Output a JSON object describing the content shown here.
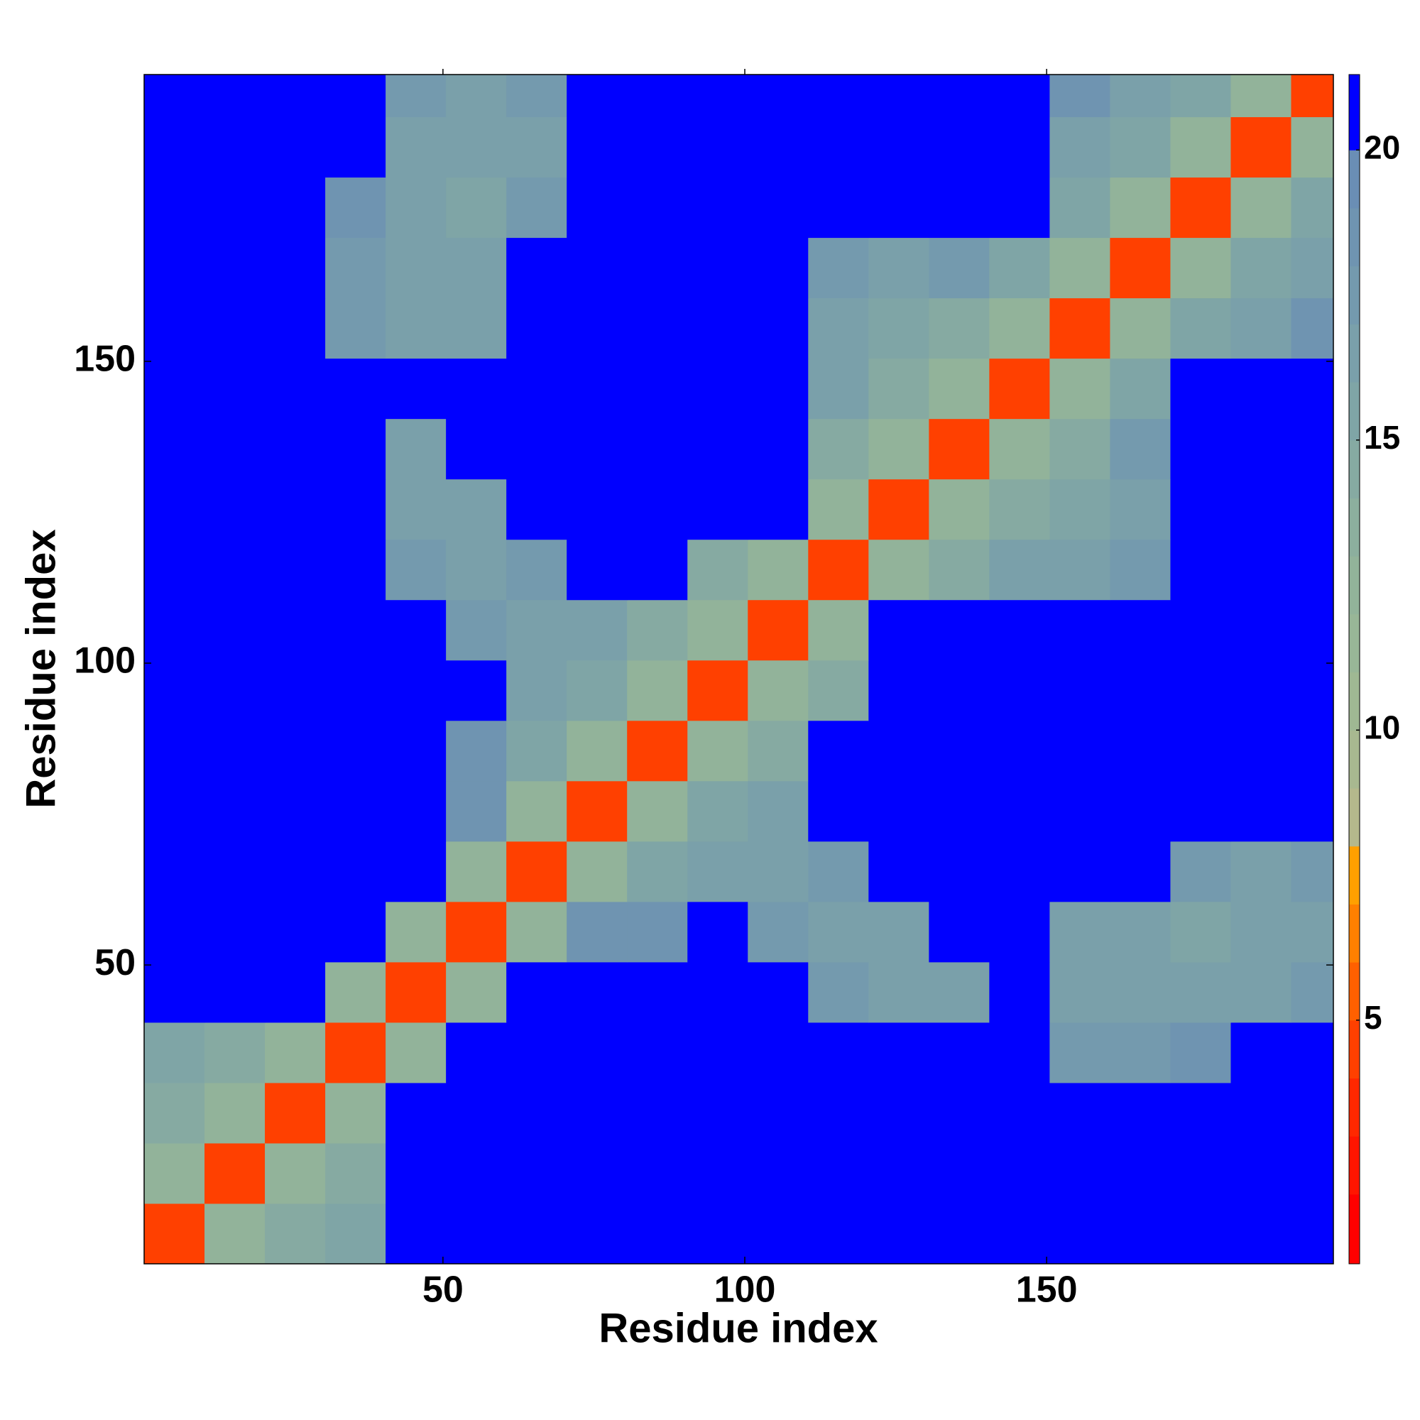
{
  "chart_data": {
    "type": "heatmap",
    "x_label": "Residue index",
    "y_label": "Residue index",
    "xlim": [
      0.5,
      197.5
    ],
    "ylim": [
      0.5,
      197.5
    ],
    "xticks": [
      50,
      100,
      150
    ],
    "yticks": [
      50,
      100,
      150
    ],
    "xbins": [
      0.5,
      10.5,
      20.5,
      30.5,
      40.5,
      50.5,
      60.5,
      70.5,
      80.5,
      90.5,
      100.5,
      110.5,
      120.5,
      130.5,
      140.5,
      150.5,
      160.5,
      170.5,
      180.5,
      190.5,
      197.5
    ],
    "ybins": [
      0.5,
      10.5,
      20.5,
      30.5,
      40.5,
      50.5,
      60.5,
      70.5,
      80.5,
      90.5,
      100.5,
      110.5,
      120.5,
      130.5,
      140.5,
      150.5,
      160.5,
      170.5,
      180.5,
      190.5,
      197.5
    ],
    "values": [
      [
        4,
        12,
        14,
        15,
        21,
        21,
        21,
        21,
        21,
        21,
        21,
        21,
        21,
        21,
        21,
        21,
        21,
        21,
        21,
        21
      ],
      [
        12,
        4,
        12,
        14,
        21,
        21,
        21,
        21,
        21,
        21,
        21,
        21,
        21,
        21,
        21,
        21,
        21,
        21,
        21,
        21
      ],
      [
        14,
        12,
        4,
        12,
        21,
        21,
        21,
        21,
        21,
        21,
        21,
        21,
        21,
        21,
        21,
        21,
        21,
        21,
        21,
        21
      ],
      [
        15,
        14,
        12,
        4,
        12,
        21,
        21,
        21,
        21,
        21,
        21,
        21,
        21,
        21,
        21,
        17,
        17,
        18,
        21,
        21
      ],
      [
        21,
        21,
        21,
        12,
        4,
        12,
        21,
        21,
        21,
        21,
        21,
        17,
        16,
        16,
        21,
        16,
        16,
        16,
        16,
        17
      ],
      [
        21,
        21,
        21,
        21,
        12,
        4,
        12,
        18,
        18,
        21,
        17,
        16,
        16,
        21,
        21,
        16,
        16,
        15,
        16,
        16
      ],
      [
        21,
        21,
        21,
        21,
        21,
        12,
        4,
        12,
        15,
        16,
        16,
        17,
        21,
        21,
        21,
        21,
        21,
        17,
        16,
        17
      ],
      [
        21,
        21,
        21,
        21,
        21,
        18,
        12,
        4,
        12,
        15,
        16,
        21,
        21,
        21,
        21,
        21,
        21,
        21,
        21,
        21
      ],
      [
        21,
        21,
        21,
        21,
        21,
        18,
        15,
        12,
        4,
        12,
        14,
        21,
        21,
        21,
        21,
        21,
        21,
        21,
        21,
        21
      ],
      [
        21,
        21,
        21,
        21,
        21,
        21,
        16,
        15,
        12,
        4,
        12,
        14,
        21,
        21,
        21,
        21,
        21,
        21,
        21,
        21
      ],
      [
        21,
        21,
        21,
        21,
        21,
        17,
        16,
        16,
        14,
        12,
        4,
        12,
        21,
        21,
        21,
        21,
        21,
        21,
        21,
        21
      ],
      [
        21,
        21,
        21,
        21,
        17,
        16,
        17,
        21,
        21,
        14,
        12,
        4,
        12,
        14,
        16,
        16,
        17,
        21,
        21,
        21
      ],
      [
        21,
        21,
        21,
        21,
        16,
        16,
        21,
        21,
        21,
        21,
        21,
        12,
        4,
        12,
        14,
        15,
        16,
        21,
        21,
        21
      ],
      [
        21,
        21,
        21,
        21,
        16,
        21,
        21,
        21,
        21,
        21,
        21,
        14,
        12,
        4,
        12,
        14,
        17,
        21,
        21,
        21
      ],
      [
        21,
        21,
        21,
        21,
        21,
        21,
        21,
        21,
        21,
        21,
        21,
        16,
        14,
        12,
        4,
        12,
        15,
        21,
        21,
        21
      ],
      [
        21,
        21,
        21,
        17,
        16,
        16,
        21,
        21,
        21,
        21,
        21,
        16,
        15,
        14,
        12,
        4,
        12,
        15,
        16,
        18
      ],
      [
        21,
        21,
        21,
        17,
        16,
        16,
        21,
        21,
        21,
        21,
        21,
        17,
        16,
        17,
        15,
        12,
        4,
        12,
        15,
        16
      ],
      [
        21,
        21,
        21,
        18,
        16,
        15,
        17,
        21,
        21,
        21,
        21,
        21,
        21,
        21,
        21,
        15,
        12,
        4,
        12,
        15
      ],
      [
        21,
        21,
        21,
        21,
        16,
        16,
        16,
        21,
        21,
        21,
        21,
        21,
        21,
        21,
        21,
        16,
        15,
        12,
        4,
        12
      ],
      [
        21,
        21,
        21,
        21,
        17,
        16,
        17,
        21,
        21,
        21,
        21,
        21,
        21,
        21,
        21,
        18,
        16,
        15,
        12,
        4
      ]
    ],
    "colorbar": {
      "lim": [
        0.8,
        21.3
      ],
      "ticks": [
        5,
        10,
        15,
        20
      ],
      "levels": [
        0.8,
        2,
        3,
        4,
        5,
        6,
        7,
        8,
        9,
        10,
        11,
        12,
        13,
        14,
        15,
        16,
        17,
        18,
        19,
        20,
        21.3
      ],
      "colors": [
        "#ff0000",
        "#ff1500",
        "#ff2800",
        "#ff4000",
        "#ff6000",
        "#ff8000",
        "#ffa000",
        "#b4b88c",
        "#a8b890",
        "#9fb893",
        "#98b697",
        "#92b39a",
        "#8caf9e",
        "#86aaa2",
        "#7fa5a6",
        "#7aa0aa",
        "#749aae",
        "#6f94b1",
        "#6a8eb5",
        "#0000ff"
      ]
    }
  }
}
